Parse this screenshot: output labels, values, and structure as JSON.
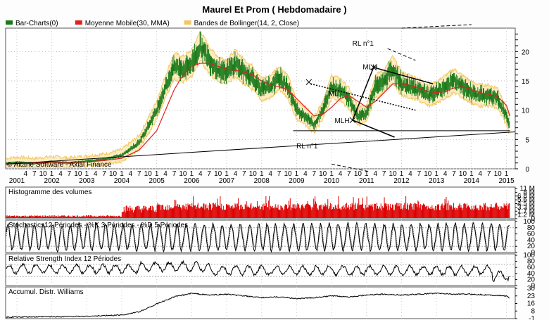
{
  "title": "Maurel Et Prom  ( Hebdomadaire )",
  "legend": [
    {
      "label": "Bar-Charts(0)",
      "color": "#1a7a1a"
    },
    {
      "label": "Moyenne Mobile(30, MMA)",
      "color": "#e02020"
    },
    {
      "label": "Bandes de Bollinger(14, 2, Close)",
      "color": "#f3c760"
    }
  ],
  "copyright": "© Aitane Software - Axial Finance",
  "chart_data": [
    {
      "type": "line",
      "panel": "price",
      "ylim": [
        0,
        24
      ],
      "yticks": [
        "0",
        "5",
        "10",
        "15",
        "20"
      ],
      "x_years": [
        "2001",
        "2002",
        "2003",
        "2004",
        "2005",
        "2006",
        "2007",
        "2008",
        "2009",
        "2010",
        "2011",
        "2012",
        "2013",
        "2014",
        "2015"
      ],
      "x_month_ticks": [
        "4",
        "7",
        "10",
        "1"
      ],
      "series": [
        {
          "name": "Bar-Charts(0)",
          "color": "#1a7a1a",
          "x": [
            2000.7,
            2001,
            2001.5,
            2002,
            2002.5,
            2003,
            2003.5,
            2004,
            2004.5,
            2005,
            2005.25,
            2005.5,
            2005.75,
            2006,
            2006.25,
            2006.5,
            2006.75,
            2007,
            2007.25,
            2007.5,
            2007.75,
            2008,
            2008.25,
            2008.5,
            2008.75,
            2009,
            2009.25,
            2009.5,
            2009.75,
            2010,
            2010.25,
            2010.5,
            2010.75,
            2011,
            2011.25,
            2011.5,
            2011.75,
            2012,
            2012.25,
            2012.5,
            2012.75,
            2013,
            2013.25,
            2013.5,
            2013.75,
            2014,
            2014.25,
            2014.5,
            2014.75,
            2015,
            2015.1
          ],
          "y": [
            0.9,
            1.1,
            0.9,
            1.2,
            1.0,
            1.3,
            1.6,
            2.3,
            4.5,
            10.0,
            14.0,
            17.5,
            17.0,
            18.0,
            21.0,
            18.5,
            17.0,
            16.5,
            18.0,
            16.5,
            15.5,
            13.5,
            14.0,
            15.5,
            14.0,
            10.0,
            9.0,
            7.5,
            10.0,
            14.0,
            13.5,
            12.0,
            9.0,
            9.5,
            14.0,
            15.0,
            17.0,
            14.5,
            14.0,
            13.5,
            12.5,
            13.0,
            14.0,
            15.0,
            14.0,
            13.0,
            12.5,
            12.5,
            12.0,
            9.0,
            7.0
          ]
        },
        {
          "name": "Moyenne Mobile(30, MMA)",
          "color": "#e02020",
          "x": [
            2000.7,
            2001,
            2001.5,
            2002,
            2002.5,
            2003,
            2003.5,
            2004,
            2004.5,
            2005,
            2005.25,
            2005.5,
            2005.75,
            2006,
            2006.25,
            2006.5,
            2006.75,
            2007,
            2007.25,
            2007.5,
            2007.75,
            2008,
            2008.25,
            2008.5,
            2008.75,
            2009,
            2009.25,
            2009.5,
            2009.75,
            2010,
            2010.25,
            2010.5,
            2010.75,
            2011,
            2011.25,
            2011.5,
            2011.75,
            2012,
            2012.25,
            2012.5,
            2012.75,
            2013,
            2013.25,
            2013.5,
            2013.75,
            2014,
            2014.25,
            2014.5,
            2014.75,
            2015,
            2015.1
          ],
          "y": [
            0.8,
            0.9,
            1.0,
            1.1,
            1.1,
            1.2,
            1.4,
            1.8,
            3.2,
            6.5,
            10.0,
            13.5,
            16.0,
            17.5,
            18.0,
            18.0,
            17.5,
            17.0,
            16.8,
            16.5,
            16.0,
            15.0,
            14.3,
            14.0,
            13.5,
            12.0,
            10.5,
            9.0,
            9.3,
            10.5,
            12.0,
            12.5,
            11.5,
            10.5,
            11.5,
            13.0,
            14.5,
            14.5,
            14.2,
            13.8,
            13.2,
            13.0,
            13.2,
            13.8,
            14.0,
            13.5,
            13.0,
            12.7,
            12.3,
            10.8,
            9.0
          ]
        }
      ]
    },
    {
      "type": "bar",
      "panel": "volume",
      "title": "Histogramme des volumes",
      "yticks": [
        "0",
        "1.2 M",
        "1.7 M",
        "3.3 M",
        "4.5 M",
        "5.6 M",
        "6.8 M",
        "8 M",
        "11 M"
      ],
      "series": [
        {
          "name": "Volume",
          "color": "#dd0000"
        }
      ]
    },
    {
      "type": "line",
      "panel": "stochastics",
      "title": "Stochastics12 Périodes  -  %K 3 Périodes  -  %D 5 Périodes",
      "ylim": [
        0,
        100
      ],
      "yticks": [
        "0",
        "20",
        "40",
        "60",
        "80",
        "100"
      ],
      "series": [
        {
          "name": "%K",
          "color": "#000000"
        },
        {
          "name": "%D",
          "color": "#777777"
        }
      ]
    },
    {
      "type": "line",
      "panel": "rsi",
      "title": "Relative Strength Index 12 Périodes",
      "ylim": [
        0,
        100
      ],
      "yticks": [
        "0",
        "20",
        "40",
        "60",
        "80",
        "100"
      ],
      "series": [
        {
          "name": "RSI",
          "color": "#000000"
        }
      ]
    },
    {
      "type": "line",
      "panel": "williams",
      "title": "Accumul. Distr. Williams",
      "yticks": [
        "-1",
        "8",
        "16",
        "23",
        "30"
      ],
      "series": [
        {
          "name": "A/D",
          "color": "#000000",
          "x": [
            2000.7,
            2002,
            2003,
            2004,
            2004.5,
            2005,
            2005.5,
            2006,
            2006.5,
            2007,
            2007.5,
            2008,
            2008.5,
            2009,
            2009.5,
            2010,
            2010.5,
            2011,
            2011.5,
            2012,
            2012.5,
            2013,
            2013.5,
            2014,
            2014.5,
            2015,
            2015.1
          ],
          "y": [
            -1,
            -0.5,
            0,
            1.5,
            5,
            14,
            22,
            26,
            24,
            25,
            23,
            21,
            22,
            20,
            21,
            23,
            22,
            24,
            25,
            24,
            25,
            26,
            25,
            25,
            24,
            23,
            20
          ]
        }
      ]
    }
  ],
  "annotations": [
    {
      "text": "RL n°1",
      "kind": "resistance"
    },
    {
      "text": "RL n°1",
      "kind": "support"
    },
    {
      "text": "MLH",
      "kind": "pitchfork-top"
    },
    {
      "text": "ML",
      "kind": "median-line"
    },
    {
      "text": "MLH",
      "kind": "pitchfork-bottom"
    }
  ]
}
